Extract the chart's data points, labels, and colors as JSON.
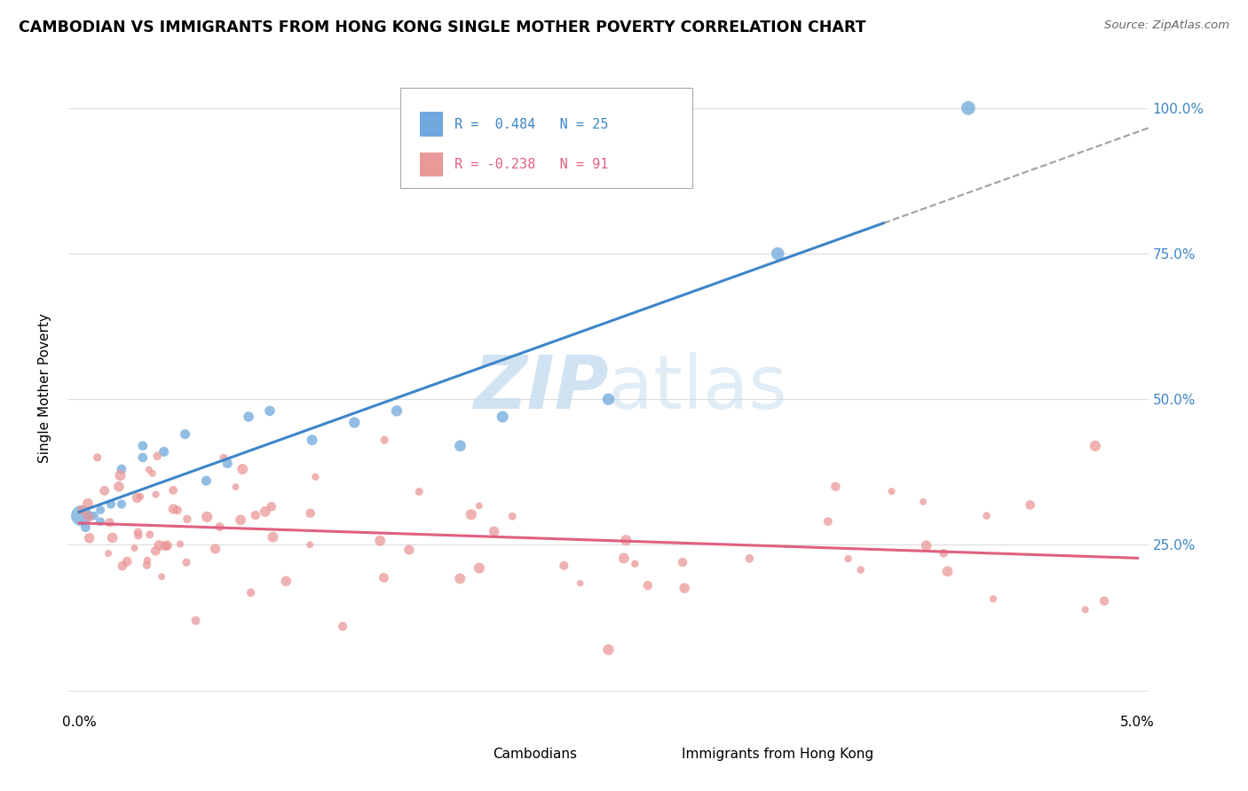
{
  "title": "CAMBODIAN VS IMMIGRANTS FROM HONG KONG SINGLE MOTHER POVERTY CORRELATION CHART",
  "source": "Source: ZipAtlas.com",
  "ylabel": "Single Mother Poverty",
  "legend_label1": "Cambodians",
  "legend_label2": "Immigrants from Hong Kong",
  "r1": 0.484,
  "n1": 25,
  "r2": -0.238,
  "n2": 91,
  "color1": "#6fa8dc",
  "color2": "#ea9999",
  "line1_color": "#3d85c8",
  "line2_color": "#e06080",
  "watermark_color": "#c9dff0",
  "background_color": "#ffffff",
  "grid_color": "#dddddd",
  "xlim": [
    0.0,
    0.05
  ],
  "ylim": [
    0.0,
    1.05
  ],
  "yticks": [
    0.25,
    0.5,
    0.75,
    1.0
  ],
  "ytick_labels": [
    "25.0%",
    "50.0%",
    "75.0%",
    "100.0%"
  ],
  "xtick_labels": [
    "0.0%",
    "5.0%"
  ]
}
